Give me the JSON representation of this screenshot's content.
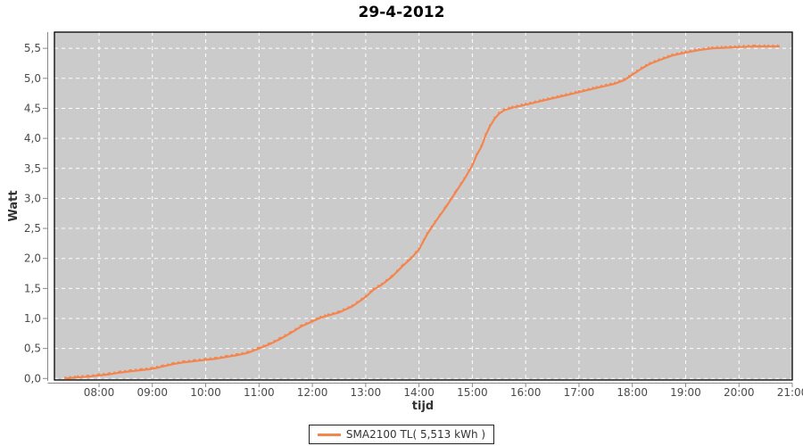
{
  "colors": {
    "page_bg": "#ffffff",
    "plot_bg": "#cbcbcb",
    "grid": "#ffffff",
    "series": "#f4854e",
    "axis": "#888888",
    "tick_label": "#4a4a4a",
    "border": "#000000"
  },
  "legend": {
    "label": "SMA2100 TL( 5,513 kWh )"
  },
  "chart_data": {
    "type": "line",
    "title": "29-4-2012",
    "xlabel": "tijd",
    "ylabel": "Watt",
    "grid": true,
    "legend_position": "bottom",
    "x_ticks": [
      "08:00",
      "09:00",
      "10:00",
      "11:00",
      "12:00",
      "13:00",
      "14:00",
      "15:00",
      "16:00",
      "17:00",
      "18:00",
      "19:00",
      "20:00",
      "21:00"
    ],
    "x_tick_hours": [
      8,
      9,
      10,
      11,
      12,
      13,
      14,
      15,
      16,
      17,
      18,
      19,
      20,
      21
    ],
    "y_ticks": [
      "0,0",
      "0,5",
      "1,0",
      "1,5",
      "2,0",
      "2,5",
      "3,0",
      "3,5",
      "4,0",
      "4,5",
      "5,0",
      "5,5"
    ],
    "y_tick_values": [
      0,
      0.5,
      1,
      1.5,
      2,
      2.5,
      3,
      3.5,
      4,
      4.5,
      5,
      5.5
    ],
    "xlim_hours": [
      7.17,
      21
    ],
    "ylim": [
      0,
      5.78
    ],
    "series": [
      {
        "name": "SMA2100 TL( 5,513 kWh )",
        "color": "#f4854e",
        "points": [
          [
            7.37,
            0.0
          ],
          [
            7.6,
            0.02
          ],
          [
            7.8,
            0.03
          ],
          [
            8.0,
            0.05
          ],
          [
            8.2,
            0.07
          ],
          [
            8.4,
            0.1
          ],
          [
            8.6,
            0.12
          ],
          [
            8.8,
            0.14
          ],
          [
            9.0,
            0.16
          ],
          [
            9.2,
            0.2
          ],
          [
            9.4,
            0.24
          ],
          [
            9.6,
            0.27
          ],
          [
            9.8,
            0.29
          ],
          [
            10.0,
            0.31
          ],
          [
            10.2,
            0.33
          ],
          [
            10.4,
            0.36
          ],
          [
            10.6,
            0.39
          ],
          [
            10.8,
            0.43
          ],
          [
            11.0,
            0.5
          ],
          [
            11.2,
            0.57
          ],
          [
            11.4,
            0.66
          ],
          [
            11.6,
            0.76
          ],
          [
            11.8,
            0.87
          ],
          [
            12.0,
            0.95
          ],
          [
            12.15,
            1.01
          ],
          [
            12.3,
            1.05
          ],
          [
            12.5,
            1.1
          ],
          [
            12.75,
            1.2
          ],
          [
            13.0,
            1.36
          ],
          [
            13.15,
            1.48
          ],
          [
            13.3,
            1.56
          ],
          [
            13.5,
            1.7
          ],
          [
            13.7,
            1.88
          ],
          [
            13.85,
            2.0
          ],
          [
            14.0,
            2.15
          ],
          [
            14.15,
            2.4
          ],
          [
            14.3,
            2.6
          ],
          [
            14.5,
            2.85
          ],
          [
            14.7,
            3.12
          ],
          [
            14.85,
            3.32
          ],
          [
            15.0,
            3.55
          ],
          [
            15.08,
            3.72
          ],
          [
            15.17,
            3.86
          ],
          [
            15.25,
            4.05
          ],
          [
            15.33,
            4.2
          ],
          [
            15.42,
            4.33
          ],
          [
            15.5,
            4.41
          ],
          [
            15.6,
            4.47
          ],
          [
            15.75,
            4.51
          ],
          [
            16.0,
            4.56
          ],
          [
            16.33,
            4.63
          ],
          [
            16.67,
            4.7
          ],
          [
            17.0,
            4.77
          ],
          [
            17.33,
            4.84
          ],
          [
            17.67,
            4.91
          ],
          [
            17.85,
            4.97
          ],
          [
            18.0,
            5.06
          ],
          [
            18.17,
            5.16
          ],
          [
            18.33,
            5.24
          ],
          [
            18.5,
            5.3
          ],
          [
            18.75,
            5.38
          ],
          [
            19.0,
            5.43
          ],
          [
            19.25,
            5.47
          ],
          [
            19.5,
            5.5
          ],
          [
            19.75,
            5.51
          ],
          [
            20.0,
            5.52
          ],
          [
            20.3,
            5.53
          ],
          [
            20.55,
            5.53
          ],
          [
            20.75,
            5.53
          ]
        ]
      }
    ]
  }
}
